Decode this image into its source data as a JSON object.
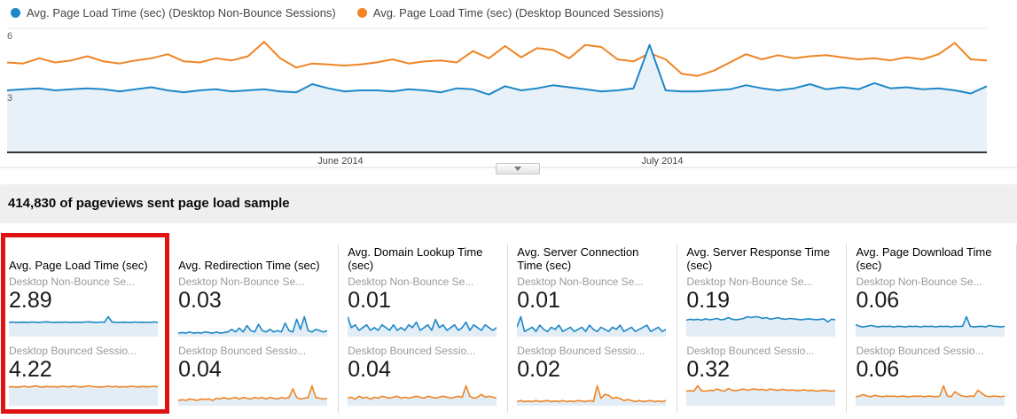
{
  "colors": {
    "series_blue": "#1e88c7",
    "series_orange": "#ef8524",
    "chart_fill": "#e8f1f8",
    "spark_fill": "#e2edf6",
    "gridline": "#e5e5e5",
    "axis_line": "#333333",
    "highlight_red": "#e01212",
    "header_bg": "#efefef"
  },
  "legend": {
    "items": [
      {
        "label": "Avg. Page Load Time (sec) (Desktop Non-Bounce Sessions)",
        "color": "#1e88c7"
      },
      {
        "label": "Avg. Page Load Time (sec) (Desktop Bounced Sessions)",
        "color": "#ef8524"
      }
    ]
  },
  "chart_data": {
    "type": "line",
    "title": "",
    "xlabel": "",
    "ylabel": "",
    "ylim": [
      0,
      6
    ],
    "y_ticks": [
      "6",
      "3"
    ],
    "x_ticks": [
      "June 2014",
      "July 2014"
    ],
    "grid": true,
    "legend_position": "top",
    "series": [
      {
        "name": "Avg. Page Load Time (sec) (Desktop Non-Bounce Sessions)",
        "color": "#1e88c7",
        "area_fill": true,
        "values": [
          3.0,
          3.05,
          3.1,
          3.0,
          3.05,
          3.1,
          3.05,
          2.95,
          3.05,
          3.15,
          3.0,
          2.9,
          3.0,
          3.05,
          2.95,
          3.0,
          3.05,
          2.95,
          2.9,
          3.3,
          3.1,
          2.95,
          3.0,
          3.0,
          2.95,
          3.05,
          3.0,
          2.9,
          3.1,
          3.05,
          2.8,
          3.2,
          3.0,
          3.1,
          3.25,
          3.15,
          3.05,
          2.95,
          3.0,
          3.1,
          5.2,
          3.0,
          2.95,
          2.95,
          3.0,
          3.05,
          3.25,
          3.1,
          3.0,
          3.1,
          3.3,
          3.05,
          3.15,
          3.05,
          3.35,
          3.1,
          3.15,
          3.05,
          3.1,
          3.0,
          2.85,
          3.2
        ]
      },
      {
        "name": "Avg. Page Load Time (sec) (Desktop Bounced Sessions)",
        "color": "#ef8524",
        "area_fill": false,
        "values": [
          4.35,
          4.3,
          4.55,
          4.35,
          4.45,
          4.65,
          4.4,
          4.3,
          4.45,
          4.55,
          4.75,
          4.4,
          4.35,
          4.55,
          4.45,
          4.65,
          5.35,
          4.55,
          4.1,
          4.3,
          4.25,
          4.2,
          4.25,
          4.35,
          4.5,
          4.3,
          4.4,
          4.45,
          4.35,
          4.9,
          4.55,
          5.15,
          4.6,
          5.05,
          4.95,
          4.55,
          5.2,
          5.1,
          4.5,
          4.4,
          4.8,
          4.5,
          3.8,
          3.7,
          3.95,
          4.35,
          4.75,
          4.5,
          4.7,
          4.55,
          4.65,
          4.7,
          4.6,
          4.5,
          4.55,
          4.45,
          4.6,
          4.5,
          4.75,
          5.3,
          4.5,
          4.45
        ]
      }
    ]
  },
  "controls": {
    "collapse_icon": "triangle-down"
  },
  "section_header": {
    "text": "414,830 of pageviews sent page load sample"
  },
  "cards": [
    {
      "title": "Avg. Page Load Time (sec)",
      "highlighted": true,
      "metrics": [
        {
          "label": "Desktop Non-Bounce Se...",
          "value": "2.89",
          "color": "#1e88c7",
          "spark": [
            2.9,
            2.95,
            2.85,
            2.9,
            2.92,
            2.88,
            2.95,
            2.9,
            2.85,
            2.95,
            3.0,
            2.9,
            2.88,
            2.92,
            2.9,
            2.95,
            2.85,
            2.9,
            2.92,
            2.88,
            2.95,
            3.0,
            2.9,
            2.85,
            2.95,
            2.9,
            4.1,
            2.95,
            2.9,
            2.88,
            2.92,
            2.9,
            2.85,
            2.95,
            2.9,
            2.92,
            2.88,
            2.9,
            2.95,
            2.9
          ]
        },
        {
          "label": "Desktop Bounced Sessio...",
          "value": "4.22",
          "color": "#ef8524",
          "spark": [
            4.2,
            4.3,
            4.15,
            4.25,
            4.4,
            4.2,
            4.3,
            4.5,
            4.25,
            4.2,
            4.35,
            4.25,
            4.3,
            4.2,
            4.4,
            4.3,
            4.25,
            4.45,
            4.3,
            4.2,
            4.35,
            4.5,
            4.3,
            4.25,
            4.2,
            4.3,
            4.4,
            4.25,
            4.35,
            4.2,
            4.3,
            4.25,
            4.4,
            4.3,
            4.2,
            4.35,
            4.25,
            4.3,
            4.4,
            4.25
          ]
        }
      ]
    },
    {
      "title": "Avg. Redirection Time (sec)",
      "highlighted": false,
      "metrics": [
        {
          "label": "Desktop Non-Bounce Se...",
          "value": "0.03",
          "color": "#1e88c7",
          "spark": [
            0.02,
            0.025,
            0.02,
            0.03,
            0.02,
            0.025,
            0.02,
            0.03,
            0.025,
            0.02,
            0.03,
            0.02,
            0.025,
            0.03,
            0.05,
            0.03,
            0.06,
            0.03,
            0.08,
            0.04,
            0.03,
            0.09,
            0.04,
            0.03,
            0.05,
            0.03,
            0.04,
            0.03,
            0.1,
            0.04,
            0.03,
            0.13,
            0.05,
            0.15,
            0.04,
            0.03,
            0.05,
            0.04,
            0.03,
            0.04
          ]
        },
        {
          "label": "Desktop Bounced Sessio...",
          "value": "0.04",
          "color": "#ef8524",
          "spark": [
            0.03,
            0.035,
            0.03,
            0.04,
            0.035,
            0.03,
            0.04,
            0.035,
            0.04,
            0.03,
            0.045,
            0.04,
            0.05,
            0.04,
            0.045,
            0.05,
            0.04,
            0.05,
            0.045,
            0.04,
            0.05,
            0.045,
            0.05,
            0.04,
            0.05,
            0.045,
            0.04,
            0.05,
            0.045,
            0.05,
            0.11,
            0.05,
            0.04,
            0.045,
            0.05,
            0.13,
            0.05,
            0.045,
            0.04,
            0.045
          ]
        }
      ]
    },
    {
      "title": "Avg. Domain Lookup Time (sec)",
      "highlighted": false,
      "metrics": [
        {
          "label": "Desktop Non-Bounce Se...",
          "value": "0.01",
          "color": "#1e88c7",
          "spark": [
            0.035,
            0.015,
            0.02,
            0.01,
            0.015,
            0.02,
            0.01,
            0.015,
            0.01,
            0.02,
            0.015,
            0.01,
            0.02,
            0.01,
            0.015,
            0.01,
            0.02,
            0.015,
            0.025,
            0.01,
            0.015,
            0.02,
            0.01,
            0.03,
            0.015,
            0.02,
            0.01,
            0.015,
            0.02,
            0.01,
            0.015,
            0.025,
            0.01,
            0.02,
            0.015,
            0.01,
            0.02,
            0.015,
            0.01,
            0.015
          ]
        },
        {
          "label": "Desktop Bounced Sessio...",
          "value": "0.04",
          "color": "#ef8524",
          "spark": [
            0.035,
            0.04,
            0.03,
            0.045,
            0.035,
            0.04,
            0.03,
            0.04,
            0.035,
            0.045,
            0.04,
            0.035,
            0.04,
            0.045,
            0.035,
            0.04,
            0.035,
            0.04,
            0.045,
            0.04,
            0.035,
            0.045,
            0.04,
            0.035,
            0.04,
            0.045,
            0.04,
            0.035,
            0.04,
            0.045,
            0.04,
            0.1,
            0.045,
            0.035,
            0.04,
            0.055,
            0.04,
            0.045,
            0.04,
            0.035
          ]
        }
      ]
    },
    {
      "title": "Avg. Server Connection Time (sec)",
      "highlighted": false,
      "metrics": [
        {
          "label": "Desktop Non-Bounce Se...",
          "value": "0.01",
          "color": "#1e88c7",
          "spark": [
            0.02,
            0.045,
            0.01,
            0.015,
            0.02,
            0.01,
            0.025,
            0.015,
            0.01,
            0.02,
            0.015,
            0.025,
            0.01,
            0.015,
            0.02,
            0.01,
            0.015,
            0.02,
            0.01,
            0.025,
            0.015,
            0.01,
            0.02,
            0.015,
            0.01,
            0.02,
            0.015,
            0.025,
            0.01,
            0.015,
            0.02,
            0.01,
            0.015,
            0.02,
            0.025,
            0.01,
            0.015,
            0.02,
            0.01,
            0.015
          ]
        },
        {
          "label": "Desktop Bounced Sessio...",
          "value": "0.02",
          "color": "#ef8524",
          "spark": [
            0.015,
            0.02,
            0.015,
            0.018,
            0.015,
            0.02,
            0.015,
            0.018,
            0.02,
            0.015,
            0.018,
            0.015,
            0.02,
            0.015,
            0.018,
            0.015,
            0.02,
            0.018,
            0.015,
            0.02,
            0.015,
            0.09,
            0.03,
            0.05,
            0.045,
            0.03,
            0.035,
            0.03,
            0.02,
            0.025,
            0.02,
            0.015,
            0.02,
            0.015,
            0.018,
            0.02,
            0.015,
            0.018,
            0.015,
            0.02
          ]
        }
      ]
    },
    {
      "title": "Avg. Server Response Time (sec)",
      "highlighted": false,
      "metrics": [
        {
          "label": "Desktop Non-Bounce Se...",
          "value": "0.19",
          "color": "#1e88c7",
          "spark": [
            0.18,
            0.19,
            0.185,
            0.19,
            0.18,
            0.195,
            0.185,
            0.19,
            0.2,
            0.185,
            0.19,
            0.21,
            0.19,
            0.185,
            0.19,
            0.2,
            0.22,
            0.21,
            0.22,
            0.215,
            0.2,
            0.21,
            0.19,
            0.2,
            0.21,
            0.195,
            0.19,
            0.2,
            0.195,
            0.19,
            0.185,
            0.19,
            0.195,
            0.19,
            0.185,
            0.19,
            0.195,
            0.16,
            0.19,
            0.185
          ]
        },
        {
          "label": "Desktop Bounced Sessio...",
          "value": "0.32",
          "color": "#ef8524",
          "spark": [
            0.3,
            0.31,
            0.3,
            0.42,
            0.31,
            0.3,
            0.32,
            0.31,
            0.35,
            0.32,
            0.3,
            0.36,
            0.32,
            0.31,
            0.33,
            0.35,
            0.32,
            0.34,
            0.35,
            0.33,
            0.34,
            0.32,
            0.35,
            0.33,
            0.32,
            0.34,
            0.33,
            0.32,
            0.33,
            0.31,
            0.32,
            0.33,
            0.31,
            0.32,
            0.3,
            0.31,
            0.32,
            0.31,
            0.3,
            0.31
          ]
        }
      ]
    },
    {
      "title": "Avg. Page Download Time (sec)",
      "highlighted": false,
      "metrics": [
        {
          "label": "Desktop Non-Bounce Se...",
          "value": "0.06",
          "color": "#1e88c7",
          "spark": [
            0.07,
            0.06,
            0.055,
            0.06,
            0.065,
            0.06,
            0.055,
            0.06,
            0.058,
            0.06,
            0.055,
            0.06,
            0.058,
            0.055,
            0.06,
            0.058,
            0.06,
            0.055,
            0.06,
            0.058,
            0.06,
            0.055,
            0.06,
            0.058,
            0.06,
            0.055,
            0.06,
            0.058,
            0.06,
            0.12,
            0.06,
            0.055,
            0.058,
            0.06,
            0.055,
            0.065,
            0.06,
            0.058,
            0.055,
            0.06
          ]
        },
        {
          "label": "Desktop Bounced Sessio...",
          "value": "0.06",
          "color": "#ef8524",
          "spark": [
            0.055,
            0.06,
            0.07,
            0.06,
            0.055,
            0.065,
            0.06,
            0.055,
            0.06,
            0.058,
            0.06,
            0.055,
            0.06,
            0.058,
            0.055,
            0.06,
            0.058,
            0.06,
            0.055,
            0.06,
            0.058,
            0.055,
            0.06,
            0.13,
            0.06,
            0.055,
            0.09,
            0.07,
            0.06,
            0.055,
            0.06,
            0.058,
            0.1,
            0.08,
            0.06,
            0.055,
            0.06,
            0.058,
            0.055,
            0.06
          ]
        }
      ]
    }
  ]
}
